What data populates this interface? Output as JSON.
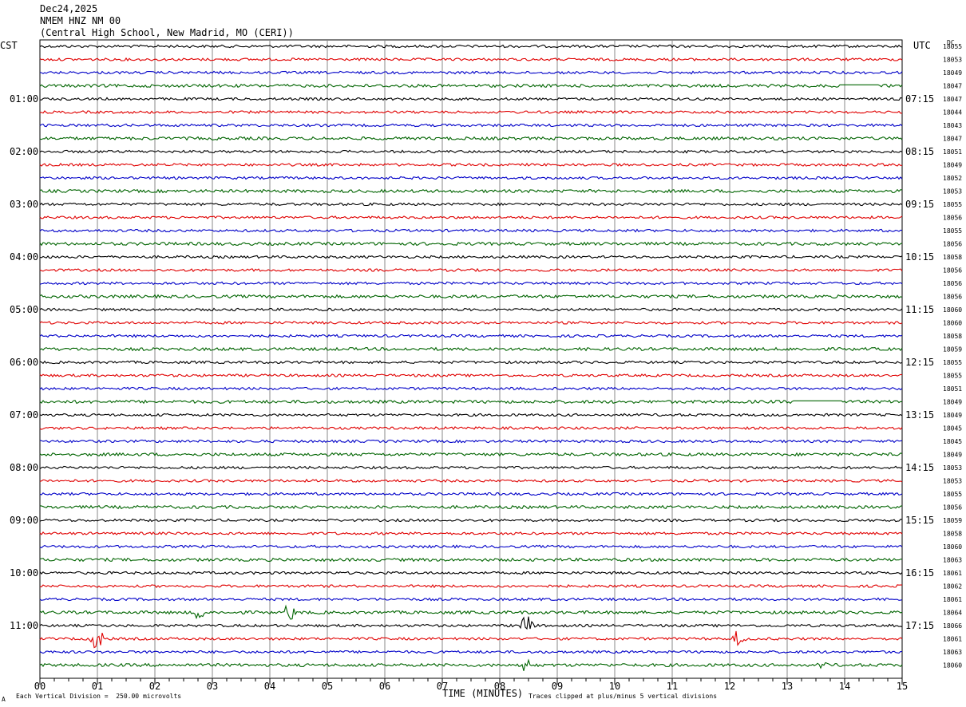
{
  "header": {
    "date": "Dec24,2025",
    "station": "NMEM HNZ NM 00",
    "location": "(Central High School, New Madrid, MO (CERI))"
  },
  "left_tz": "CST",
  "right_tz": "UTC",
  "dc_label": "DC",
  "footer": {
    "scale_note": "Each Vertical Division =  250.00 microvolts",
    "xlabel": "TIME (MINUTES)",
    "clip_note": "Traces clipped at plus/minus 5 vertical divisions",
    "corner_mark": "А"
  },
  "chart_data": {
    "type": "line",
    "title": "NMEM HNZ NM 00",
    "xlabel": "TIME (MINUTES)",
    "xlim": [
      0,
      15
    ],
    "x_ticks": [
      "00",
      "01",
      "02",
      "03",
      "04",
      "05",
      "06",
      "07",
      "08",
      "09",
      "10",
      "11",
      "12",
      "13",
      "14",
      "15"
    ],
    "trace_minutes": 15,
    "trace_count": 48,
    "trace_colors": [
      "#000000",
      "#e00000",
      "#0000c8",
      "#006400"
    ],
    "left_hour_labels": [
      "01:00",
      "02:00",
      "03:00",
      "04:00",
      "05:00",
      "06:00",
      "07:00",
      "08:00",
      "09:00",
      "10:00",
      "11:00"
    ],
    "right_hour_labels": [
      "07:15",
      "08:15",
      "09:15",
      "10:15",
      "11:15",
      "12:15",
      "13:15",
      "14:15",
      "15:15",
      "16:15",
      "17:15"
    ],
    "dc_offsets": [
      18055,
      18053,
      18049,
      18047,
      18047,
      18044,
      18043,
      18047,
      18051,
      18049,
      18052,
      18053,
      18055,
      18056,
      18055,
      18056,
      18058,
      18056,
      18056,
      18056,
      18060,
      18060,
      18058,
      18059,
      18055,
      18055,
      18051,
      18049,
      18049,
      18045,
      18045,
      18049,
      18053,
      18053,
      18055,
      18056,
      18059,
      18058,
      18060,
      18063,
      18061,
      18062,
      18061,
      18064,
      18066,
      18061,
      18063,
      18060
    ],
    "events": [
      {
        "trace": 43,
        "minute": 2.78,
        "amplitude": 1.2
      },
      {
        "trace": 43,
        "minute": 4.35,
        "amplitude": 1.3
      },
      {
        "trace": 44,
        "minute": 8.47,
        "amplitude": 1.5
      },
      {
        "trace": 45,
        "minute": 1.0,
        "amplitude": 1.6
      },
      {
        "trace": 45,
        "minute": 12.15,
        "amplitude": 1.3
      },
      {
        "trace": 47,
        "minute": 8.45,
        "amplitude": 1.0
      },
      {
        "trace": 47,
        "minute": 13.6,
        "amplitude": 0.5
      }
    ],
    "flat_segments": [
      {
        "trace": 3,
        "start_minute": 13.9,
        "end_minute": 14.6
      },
      {
        "trace": 27,
        "start_minute": 13.1,
        "end_minute": 13.95
      }
    ]
  }
}
